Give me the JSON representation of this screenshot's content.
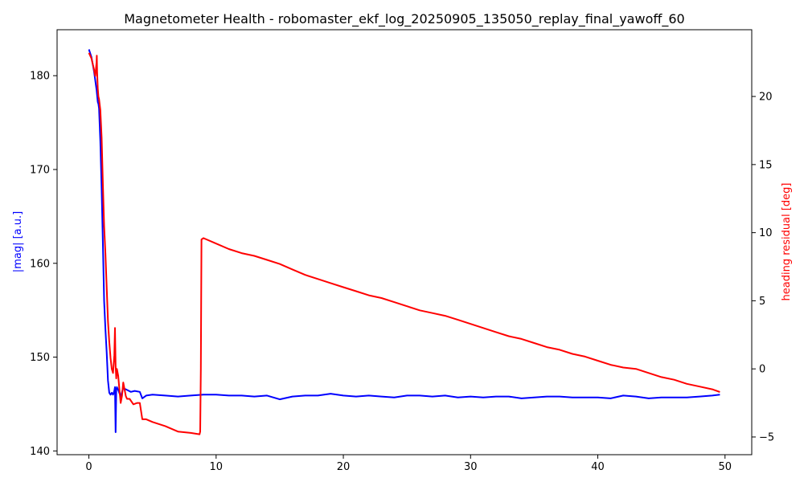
{
  "chart_data": {
    "type": "line",
    "title": "Magnetometer Health - robomaster_ekf_log_20250905_135050_replay_final_yawoff_60",
    "xlabel": "",
    "ylabel_left": "|mag| [a.u.]",
    "ylabel_right": "heading residual [deg]",
    "xlim": [
      -2.5,
      52.1
    ],
    "ylim_left": [
      139.6,
      184.9
    ],
    "ylim_right": [
      -6.3,
      24.9
    ],
    "x_ticks": [
      0,
      10,
      20,
      30,
      40,
      50
    ],
    "y_ticks_left": [
      140,
      150,
      160,
      170,
      180
    ],
    "y_ticks_right": [
      -5,
      0,
      5,
      10,
      15,
      20
    ],
    "grid": false,
    "legend": "none",
    "series": [
      {
        "axis": "left",
        "color": "#0000ff",
        "x": [
          0.0,
          0.2,
          0.4,
          0.6,
          0.7,
          0.75,
          0.8,
          0.9,
          1.0,
          1.1,
          1.2,
          1.3,
          1.4,
          1.5,
          1.6,
          1.7,
          1.8,
          1.9,
          2.0,
          2.05,
          2.1,
          2.15,
          2.2,
          2.3,
          2.5,
          2.7,
          3.0,
          3.3,
          3.6,
          4.0,
          4.2,
          4.5,
          5.0,
          6.0,
          7.0,
          8.0,
          9.0,
          10.0,
          11.0,
          12.0,
          13.0,
          14.0,
          15.0,
          16.0,
          17.0,
          18.0,
          19.0,
          20.0,
          21.0,
          22.0,
          23.0,
          24.0,
          25.0,
          26.0,
          27.0,
          28.0,
          29.0,
          30.0,
          31.0,
          32.0,
          33.0,
          34.0,
          35.0,
          36.0,
          37.0,
          38.0,
          39.0,
          40.0,
          41.0,
          42.0,
          43.0,
          44.0,
          45.0,
          46.0,
          47.0,
          48.0,
          49.0,
          49.6
        ],
        "y": [
          182.8,
          182.0,
          180.5,
          178.5,
          177.2,
          177.0,
          176.5,
          173.0,
          168.0,
          162.0,
          156.0,
          153.0,
          150.5,
          147.5,
          146.2,
          146.0,
          146.2,
          146.0,
          146.4,
          146.8,
          142.0,
          146.5,
          146.8,
          146.5,
          145.8,
          146.7,
          146.5,
          146.3,
          146.4,
          146.3,
          145.6,
          145.9,
          146.0,
          145.9,
          145.8,
          145.9,
          146.0,
          146.0,
          145.9,
          145.9,
          145.8,
          145.9,
          145.5,
          145.8,
          145.9,
          145.9,
          146.1,
          145.9,
          145.8,
          145.9,
          145.8,
          145.7,
          145.9,
          145.9,
          145.8,
          145.9,
          145.7,
          145.8,
          145.7,
          145.8,
          145.8,
          145.6,
          145.7,
          145.8,
          145.8,
          145.7,
          145.7,
          145.7,
          145.6,
          145.9,
          145.8,
          145.6,
          145.7,
          145.7,
          145.7,
          145.8,
          145.9,
          146.0
        ]
      },
      {
        "axis": "right",
        "color": "#ff0000",
        "x": [
          0.0,
          0.2,
          0.4,
          0.5,
          0.6,
          0.62,
          0.65,
          0.7,
          0.75,
          0.8,
          0.9,
          1.0,
          1.1,
          1.2,
          1.3,
          1.4,
          1.5,
          1.6,
          1.7,
          1.8,
          1.9,
          2.0,
          2.05,
          2.1,
          2.15,
          2.2,
          2.3,
          2.4,
          2.5,
          2.6,
          2.7,
          2.8,
          2.9,
          3.0,
          3.2,
          3.5,
          3.8,
          4.0,
          4.2,
          4.5,
          5.0,
          6.0,
          7.0,
          8.0,
          8.7,
          8.75,
          8.8,
          8.85,
          9.0,
          10.0,
          11.0,
          12.0,
          13.0,
          14.0,
          15.0,
          16.0,
          17.0,
          18.0,
          19.0,
          20.0,
          21.0,
          22.0,
          23.0,
          24.0,
          25.0,
          26.0,
          27.0,
          28.0,
          29.0,
          30.0,
          31.0,
          32.0,
          33.0,
          34.0,
          35.0,
          36.0,
          37.0,
          38.0,
          39.0,
          40.0,
          41.0,
          42.0,
          43.0,
          44.0,
          45.0,
          46.0,
          47.0,
          48.0,
          49.0,
          49.6
        ],
        "y": [
          23.2,
          22.8,
          22.0,
          21.5,
          22.5,
          23.0,
          21.8,
          20.6,
          20.0,
          19.8,
          19.0,
          17.0,
          13.5,
          10.5,
          8.5,
          6.0,
          3.5,
          2.0,
          0.8,
          0.0,
          -0.3,
          1.0,
          3.0,
          0.2,
          -0.7,
          0.0,
          -0.5,
          -1.5,
          -2.5,
          -2.0,
          -1.0,
          -1.5,
          -2.0,
          -2.2,
          -2.2,
          -2.6,
          -2.5,
          -2.5,
          -3.7,
          -3.7,
          -3.9,
          -4.2,
          -4.6,
          -4.7,
          -4.8,
          -4.6,
          0.0,
          9.5,
          9.6,
          9.2,
          8.8,
          8.5,
          8.3,
          8.0,
          7.7,
          7.3,
          6.9,
          6.6,
          6.3,
          6.0,
          5.7,
          5.4,
          5.2,
          4.9,
          4.6,
          4.3,
          4.1,
          3.9,
          3.6,
          3.3,
          3.0,
          2.7,
          2.4,
          2.2,
          1.9,
          1.6,
          1.4,
          1.1,
          0.9,
          0.6,
          0.3,
          0.1,
          0.0,
          -0.3,
          -0.6,
          -0.8,
          -1.1,
          -1.3,
          -1.5,
          -1.7
        ]
      }
    ]
  }
}
